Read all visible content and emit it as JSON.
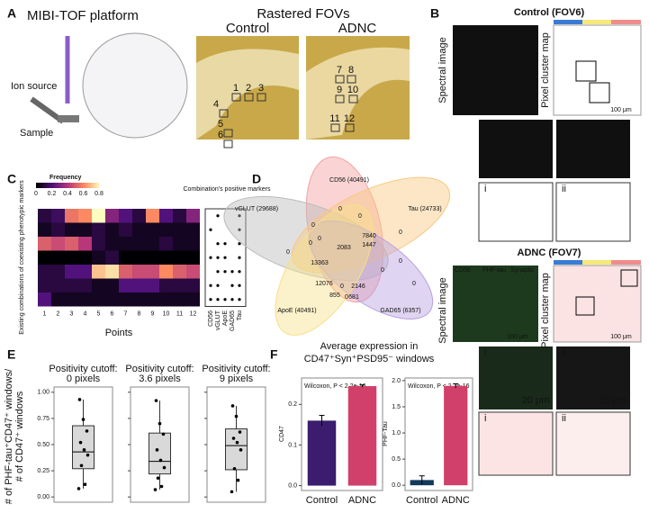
{
  "panel_a": {
    "letter": "A",
    "title": "MIBI-TOF platform",
    "ion_source": "Ion source",
    "sample": "Sample",
    "fov_title": "Rastered FOVs",
    "control": "Control",
    "adnc": "ADNC",
    "control_fovs": [
      "1",
      "2",
      "3",
      "4",
      "5",
      "6"
    ],
    "adnc_fovs": [
      "7",
      "8",
      "9",
      "10",
      "11",
      "12"
    ]
  },
  "panel_b": {
    "letter": "B",
    "control_title": "Control (FOV6)",
    "adnc_title": "ADNC (FOV7)",
    "spectral": "Spectral image",
    "cluster": "Pixel cluster map",
    "legend": [
      "CD56",
      "PHF-tau",
      "Synapto."
    ],
    "scale_100": "100 μm",
    "scale_20": "20 μm",
    "insets": [
      "i",
      "ii"
    ]
  },
  "panel_c": {
    "letter": "C",
    "legend_title": "Frequency",
    "colorbar_ticks": [
      0,
      0.2,
      0.4,
      0.6,
      0.8
    ],
    "y_label": "Existing combinations of coexisting phenotypic markers",
    "x_label": "Points",
    "x": [
      "1",
      "2",
      "3",
      "4",
      "5",
      "6",
      "7",
      "8",
      "9",
      "10",
      "11",
      "12"
    ],
    "matrix": [
      [
        0.1,
        0.15,
        0.55,
        0.6,
        0.8,
        0.3,
        0.2,
        0.1,
        0.6,
        0.2,
        0.1,
        0.3
      ],
      [
        0.05,
        0.1,
        0.05,
        0.05,
        0.1,
        0.05,
        0.1,
        0.05,
        0.05,
        0.05,
        0.05,
        0.05
      ],
      [
        0.5,
        0.45,
        0.5,
        0.4,
        0.1,
        0.05,
        0.05,
        0.05,
        0.05,
        0.1,
        0.05,
        0.05
      ],
      [
        0,
        0,
        0,
        0,
        0.05,
        0.1,
        0,
        0,
        0,
        0,
        0,
        0
      ],
      [
        0.1,
        0.1,
        0.2,
        0.2,
        0.7,
        0.75,
        0.5,
        0.45,
        0.45,
        0.6,
        0.5,
        0.45
      ],
      [
        0.1,
        0.1,
        0.1,
        0.1,
        0.05,
        0.05,
        0.2,
        0.2,
        0.2,
        0.1,
        0.1,
        0.1
      ],
      [
        0.2,
        0.05,
        0.05,
        0.05,
        0.05,
        0.05,
        0.05,
        0.05,
        0.05,
        0.05,
        0.05,
        0.05
      ]
    ],
    "markers_title": "Combination's positive markers",
    "markers": [
      "CD56",
      "vGLUT",
      "ApoE",
      "GAD65",
      "Tau"
    ],
    "presence": [
      [
        0,
        1,
        0,
        0,
        1
      ],
      [
        1,
        0,
        0,
        0,
        1
      ],
      [
        0,
        1,
        1,
        0,
        1
      ],
      [
        1,
        1,
        1,
        0,
        1
      ],
      [
        0,
        1,
        1,
        1,
        1
      ],
      [
        1,
        1,
        0,
        1,
        1
      ],
      [
        1,
        1,
        1,
        1,
        1
      ]
    ]
  },
  "panel_d": {
    "letter": "D",
    "sets": [
      "CD56 (40491)",
      "vGLUT (29688)",
      "Tau (24733)",
      "ApoE (40491)",
      "GAD65 (6357)"
    ],
    "regions": [
      0,
      0,
      0,
      7840,
      1447,
      0,
      0,
      2083,
      0,
      0,
      0,
      13363,
      0,
      0,
      12076,
      2146,
      0,
      855,
      681,
      0
    ]
  },
  "panel_e": {
    "letter": "E",
    "y_label": "# of PHF-tau⁺CD47⁺ windows/",
    "y_label_2": "# of CD47⁺ windows",
    "ylim": [
      -0.05,
      1.05
    ],
    "yticks": [
      {
        "value": 0,
        "label": "0.00"
      },
      {
        "value": 0.25,
        "label": "0.25"
      },
      {
        "value": 0.5,
        "label": "0.50"
      },
      {
        "value": 0.75,
        "label": "0.75"
      },
      {
        "value": 1,
        "label": "1.00"
      }
    ],
    "boxes": [
      {
        "title": "Positivity cutoff:",
        "subtitle": "0 pixels",
        "whisker_low": 0.08,
        "q1": 0.27,
        "median": 0.43,
        "q3": 0.68,
        "whisker_high": 0.93,
        "points": [
          0.08,
          0.12,
          0.3,
          0.4,
          0.45,
          0.52,
          0.63,
          0.74,
          0.93
        ]
      },
      {
        "title": "Positivity cutoff:",
        "subtitle": "3.6 pixels",
        "whisker_low": 0.07,
        "q1": 0.22,
        "median": 0.34,
        "q3": 0.61,
        "whisker_high": 0.92,
        "points": [
          0.07,
          0.1,
          0.18,
          0.28,
          0.35,
          0.45,
          0.6,
          0.7,
          0.92
        ]
      },
      {
        "title": "Positivity cutoff:",
        "subtitle": "9 pixels",
        "whisker_low": 0.05,
        "q1": 0.26,
        "median": 0.49,
        "q3": 0.65,
        "whisker_high": 0.87,
        "points": [
          0.05,
          0.16,
          0.27,
          0.45,
          0.52,
          0.56,
          0.62,
          0.77,
          0.87
        ]
      }
    ]
  },
  "panel_f": {
    "letter": "F",
    "title": "Average expression in",
    "subtitle": "CD47⁺Syn⁺PSD95⁻ windows",
    "categories": [
      "Control",
      "ADNC"
    ],
    "charts": [
      {
        "y_label": "CD47",
        "annotation": "Wilcoxon, P < 2.2e-16",
        "ylim": [
          -0.012,
          0.265
        ],
        "yticks": [
          {
            "value": 0,
            "label": "0.0"
          },
          {
            "value": 0.1,
            "label": "0.1"
          },
          {
            "value": 0.2,
            "label": "0.2"
          }
        ],
        "values": [
          0.16,
          0.245
        ],
        "errors": [
          0.013,
          0.003
        ],
        "colors": [
          "#3b1c6e",
          "#d0406a"
        ]
      },
      {
        "y_label": "PHF-Tau",
        "annotation": "Wilcoxon, P < 2.2e-16",
        "ylim": [
          -0.1,
          2.05
        ],
        "yticks": [
          {
            "value": 0,
            "label": "0.0"
          },
          {
            "value": 0.5,
            "label": "0.5"
          },
          {
            "value": 1,
            "label": "1.0"
          },
          {
            "value": 1.5,
            "label": "1.5"
          },
          {
            "value": 2,
            "label": "2.0"
          }
        ],
        "values": [
          0.1,
          1.9
        ],
        "errors": [
          0.08,
          0.04
        ],
        "colors": [
          "#123a5a",
          "#d0406a"
        ]
      }
    ]
  }
}
